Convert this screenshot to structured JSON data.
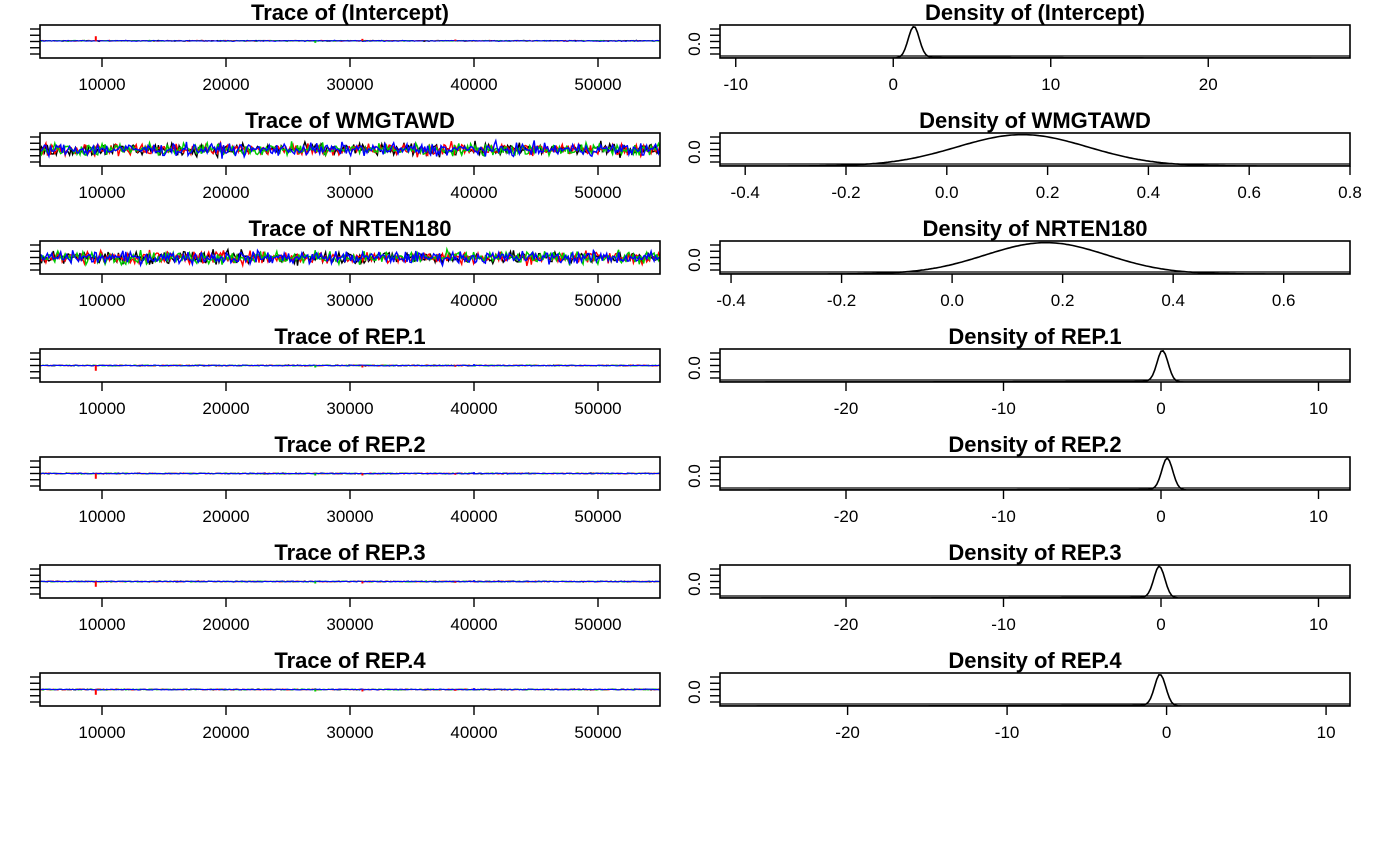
{
  "chart_data": [
    {
      "panel": "trace",
      "type": "line",
      "title": "Trace of (Intercept)",
      "xlim": [
        5000,
        55000
      ],
      "ylim": [
        -25,
        25
      ],
      "x_ticks": [
        10000,
        20000,
        30000,
        40000,
        50000
      ],
      "x_tick_labels": [
        "10000",
        "20000",
        "30000",
        "40000",
        "50000"
      ],
      "y_tick_labels": [],
      "level": 1,
      "noise": 0.6,
      "spikes": [
        {
          "x": 9500,
          "y": 7,
          "chain": 1,
          "style": "dash"
        },
        {
          "x": 27200,
          "y": -4,
          "chain": 2,
          "style": "dot"
        },
        {
          "x": 31000,
          "y": 3,
          "chain": 1
        },
        {
          "x": 38500,
          "y": 2,
          "chain": 1
        },
        {
          "x": 36000,
          "y": -1.5,
          "chain": 0
        }
      ],
      "series": [
        {
          "color": "#000000"
        },
        {
          "color": "#ff0000"
        },
        {
          "color": "#00cd00"
        },
        {
          "color": "#0000ff"
        }
      ]
    },
    {
      "panel": "density",
      "type": "line",
      "title": "Density of (Intercept)",
      "xlim": [
        -11,
        29
      ],
      "ylim": [
        0,
        1
      ],
      "x_ticks": [
        -10,
        0,
        10,
        20
      ],
      "x_tick_labels": [
        "-10",
        "0",
        "10",
        "20"
      ],
      "y_label": "0.0",
      "peak": 1.3,
      "peak_height": 0.95,
      "width": 0.35,
      "tail_left": 0.4,
      "tail_right": 3.5
    },
    {
      "panel": "trace",
      "type": "line",
      "title": "Trace of WMGTAWD",
      "xlim": [
        5000,
        55000
      ],
      "ylim": [
        -0.5,
        0.8
      ],
      "x_ticks": [
        10000,
        20000,
        30000,
        40000,
        50000
      ],
      "x_tick_labels": [
        "10000",
        "20000",
        "30000",
        "40000",
        "50000"
      ],
      "y_tick_labels": [],
      "level": 0.15,
      "noise": 0.12,
      "spikes": [],
      "series": [
        {
          "color": "#000000"
        },
        {
          "color": "#ff0000"
        },
        {
          "color": "#00cd00"
        },
        {
          "color": "#0000ff"
        }
      ]
    },
    {
      "panel": "density",
      "type": "line",
      "title": "Density of WMGTAWD",
      "xlim": [
        -0.45,
        0.8
      ],
      "ylim": [
        0,
        1
      ],
      "x_ticks": [
        -0.4,
        -0.2,
        0.0,
        0.2,
        0.4,
        0.6,
        0.8
      ],
      "x_tick_labels": [
        "-0.4",
        "-0.2",
        "0.0",
        "0.2",
        "0.4",
        "0.6",
        "0.8"
      ],
      "y_label": "0.0",
      "peak": 0.15,
      "peak_height": 0.95,
      "width": 0.13,
      "tail_left": 1,
      "tail_right": 1
    },
    {
      "panel": "trace",
      "type": "line",
      "title": "Trace of NRTEN180",
      "xlim": [
        5000,
        55000
      ],
      "ylim": [
        -0.5,
        0.8
      ],
      "x_ticks": [
        10000,
        20000,
        30000,
        40000,
        50000
      ],
      "x_tick_labels": [
        "10000",
        "20000",
        "30000",
        "40000",
        "50000"
      ],
      "y_tick_labels": [],
      "level": 0.15,
      "noise": 0.12,
      "spikes": [],
      "series": [
        {
          "color": "#000000"
        },
        {
          "color": "#ff0000"
        },
        {
          "color": "#00cd00"
        },
        {
          "color": "#0000ff"
        }
      ]
    },
    {
      "panel": "density",
      "type": "line",
      "title": "Density of NRTEN180",
      "xlim": [
        -0.42,
        0.72
      ],
      "ylim": [
        0,
        1
      ],
      "x_ticks": [
        -0.4,
        -0.2,
        0.0,
        0.2,
        0.4,
        0.6
      ],
      "x_tick_labels": [
        "-0.4",
        "-0.2",
        "0.0",
        "0.2",
        "0.4",
        "0.6"
      ],
      "y_label": "0.0",
      "peak": 0.17,
      "peak_height": 0.95,
      "width": 0.11,
      "tail_left": 1,
      "tail_right": 1
    },
    {
      "panel": "trace",
      "type": "line",
      "title": "Trace of REP.1",
      "xlim": [
        5000,
        55000
      ],
      "ylim": [
        -25,
        25
      ],
      "x_ticks": [
        10000,
        20000,
        30000,
        40000,
        50000
      ],
      "x_tick_labels": [
        "10000",
        "20000",
        "30000",
        "40000",
        "50000"
      ],
      "y_tick_labels": [],
      "level": 0,
      "noise": 0.6,
      "spikes": [
        {
          "x": 9500,
          "y": -8,
          "chain": 1
        },
        {
          "x": 27200,
          "y": -4,
          "chain": 2,
          "style": "dot"
        },
        {
          "x": 31000,
          "y": -3,
          "chain": 1
        },
        {
          "x": 38500,
          "y": -2,
          "chain": 1
        },
        {
          "x": 40000,
          "y": 2,
          "chain": 3
        }
      ],
      "series": [
        {
          "color": "#000000"
        },
        {
          "color": "#ff0000"
        },
        {
          "color": "#00cd00"
        },
        {
          "color": "#0000ff"
        }
      ]
    },
    {
      "panel": "density",
      "type": "line",
      "title": "Density of REP.1",
      "xlim": [
        -28,
        12
      ],
      "ylim": [
        0,
        1
      ],
      "x_ticks": [
        -20,
        -10,
        0,
        10
      ],
      "x_tick_labels": [
        "-20",
        "-10",
        "0",
        "10"
      ],
      "y_label": "0.0",
      "peak": 0.1,
      "peak_height": 0.95,
      "width": 0.35,
      "tail_left": 3.5,
      "tail_right": 0.5
    },
    {
      "panel": "trace",
      "type": "line",
      "title": "Trace of REP.2",
      "xlim": [
        5000,
        55000
      ],
      "ylim": [
        -25,
        25
      ],
      "x_ticks": [
        10000,
        20000,
        30000,
        40000,
        50000
      ],
      "x_tick_labels": [
        "10000",
        "20000",
        "30000",
        "40000",
        "50000"
      ],
      "y_tick_labels": [],
      "level": 0,
      "noise": 0.6,
      "spikes": [
        {
          "x": 9500,
          "y": -8,
          "chain": 1
        },
        {
          "x": 27200,
          "y": -4,
          "chain": 2,
          "style": "dot"
        },
        {
          "x": 31000,
          "y": -3,
          "chain": 1
        },
        {
          "x": 38500,
          "y": -2,
          "chain": 1
        },
        {
          "x": 40000,
          "y": 2,
          "chain": 3
        }
      ],
      "series": [
        {
          "color": "#000000"
        },
        {
          "color": "#ff0000"
        },
        {
          "color": "#00cd00"
        },
        {
          "color": "#0000ff"
        }
      ]
    },
    {
      "panel": "density",
      "type": "line",
      "title": "Density of REP.2",
      "xlim": [
        -28,
        12
      ],
      "ylim": [
        0,
        1
      ],
      "x_ticks": [
        -20,
        -10,
        0,
        10
      ],
      "x_tick_labels": [
        "-20",
        "-10",
        "0",
        "10"
      ],
      "y_label": "0.0",
      "peak": 0.4,
      "peak_height": 0.95,
      "width": 0.35,
      "tail_left": 3.5,
      "tail_right": 0.5
    },
    {
      "panel": "trace",
      "type": "line",
      "title": "Trace of REP.3",
      "xlim": [
        5000,
        55000
      ],
      "ylim": [
        -25,
        25
      ],
      "x_ticks": [
        10000,
        20000,
        30000,
        40000,
        50000
      ],
      "x_tick_labels": [
        "10000",
        "20000",
        "30000",
        "40000",
        "50000"
      ],
      "y_tick_labels": [],
      "level": 0,
      "noise": 0.6,
      "spikes": [
        {
          "x": 9500,
          "y": -8,
          "chain": 1
        },
        {
          "x": 27200,
          "y": -4,
          "chain": 2,
          "style": "dot"
        },
        {
          "x": 31000,
          "y": -3,
          "chain": 1
        },
        {
          "x": 38500,
          "y": -2,
          "chain": 1
        },
        {
          "x": 40000,
          "y": 2,
          "chain": 3
        }
      ],
      "series": [
        {
          "color": "#000000"
        },
        {
          "color": "#ff0000"
        },
        {
          "color": "#00cd00"
        },
        {
          "color": "#0000ff"
        }
      ]
    },
    {
      "panel": "density",
      "type": "line",
      "title": "Density of REP.3",
      "xlim": [
        -28,
        12
      ],
      "ylim": [
        0,
        1
      ],
      "x_ticks": [
        -20,
        -10,
        0,
        10
      ],
      "x_tick_labels": [
        "-20",
        "-10",
        "0",
        "10"
      ],
      "y_label": "0.0",
      "peak": -0.1,
      "peak_height": 0.95,
      "width": 0.35,
      "tail_left": 3.5,
      "tail_right": 0.5
    },
    {
      "panel": "trace",
      "type": "line",
      "title": "Trace of REP.4",
      "xlim": [
        5000,
        55000
      ],
      "ylim": [
        -25,
        25
      ],
      "x_ticks": [
        10000,
        20000,
        30000,
        40000,
        50000
      ],
      "x_tick_labels": [
        "10000",
        "20000",
        "30000",
        "40000",
        "50000"
      ],
      "y_tick_labels": [],
      "level": 0,
      "noise": 0.6,
      "spikes": [
        {
          "x": 9500,
          "y": -8,
          "chain": 1
        },
        {
          "x": 27200,
          "y": -4,
          "chain": 2,
          "style": "dot"
        },
        {
          "x": 31000,
          "y": -3,
          "chain": 1
        },
        {
          "x": 38500,
          "y": -2,
          "chain": 1
        },
        {
          "x": 40000,
          "y": 2,
          "chain": 3
        }
      ],
      "series": [
        {
          "color": "#000000"
        },
        {
          "color": "#ff0000"
        },
        {
          "color": "#00cd00"
        },
        {
          "color": "#0000ff"
        }
      ]
    },
    {
      "panel": "density",
      "type": "line",
      "title": "Density of REP.4",
      "xlim": [
        -28,
        11.5
      ],
      "ylim": [
        0,
        1
      ],
      "x_ticks": [
        -20,
        -10,
        0,
        10
      ],
      "x_tick_labels": [
        "-20",
        "-10",
        "0",
        "10"
      ],
      "y_label": "0.0",
      "peak": -0.4,
      "peak_height": 0.95,
      "width": 0.35,
      "tail_left": 3.5,
      "tail_right": 0.5
    }
  ]
}
